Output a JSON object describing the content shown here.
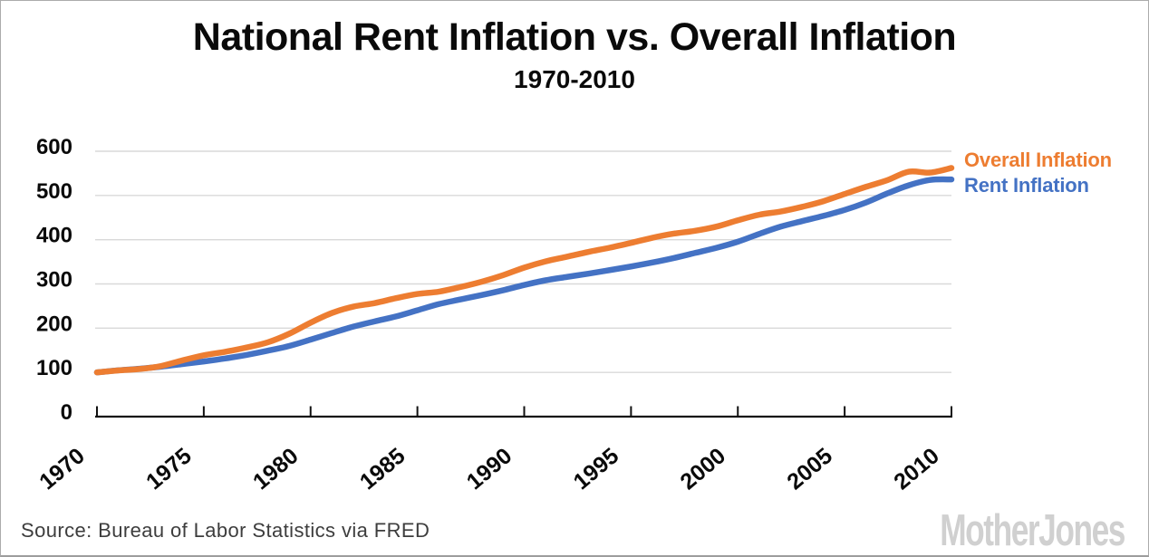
{
  "footer": {
    "source": "Source: Bureau of Labor Statistics via FRED",
    "brand": "MotherJones"
  },
  "chart_data": {
    "type": "line",
    "title": "National Rent Inflation vs. Overall Inflation",
    "subtitle": "1970-2010",
    "xlabel": "",
    "ylabel": "",
    "xlim": [
      1970,
      2010
    ],
    "ylim": [
      0,
      600
    ],
    "x_ticks": [
      1970,
      1975,
      1980,
      1985,
      1990,
      1995,
      2000,
      2005,
      2010
    ],
    "y_ticks": [
      0,
      100,
      200,
      300,
      400,
      500,
      600
    ],
    "grid": "horizontal",
    "grid_color": "#d9d9d9",
    "axis_color": "#111111",
    "legend_position": "right-of-line-ends",
    "x": [
      1970,
      1971,
      1972,
      1973,
      1974,
      1975,
      1976,
      1977,
      1978,
      1979,
      1980,
      1981,
      1982,
      1983,
      1984,
      1985,
      1986,
      1987,
      1988,
      1989,
      1990,
      1991,
      1992,
      1993,
      1994,
      1995,
      1996,
      1997,
      1998,
      1999,
      2000,
      2001,
      2002,
      2003,
      2004,
      2005,
      2006,
      2007,
      2008,
      2009,
      2010
    ],
    "series": [
      {
        "name": "Overall Inflation",
        "color": "#ED7D31",
        "values": [
          100,
          104.4,
          107.7,
          114.4,
          127.1,
          138.7,
          146.6,
          156.2,
          168.0,
          187.4,
          212.4,
          234.3,
          248.7,
          256.7,
          267.8,
          277.3,
          282.5,
          292.8,
          304.9,
          319.6,
          336.9,
          351.0,
          361.6,
          372.4,
          381.9,
          392.8,
          404.4,
          413.7,
          420.1,
          429.6,
          443.8,
          456.4,
          463.7,
          474.2,
          486.9,
          503.4,
          519.6,
          534.6,
          553.8,
          551.8,
          562.2
        ]
      },
      {
        "name": "Rent Inflation",
        "color": "#4472C4",
        "values": [
          100,
          104.7,
          108.4,
          112.9,
          118.7,
          124.7,
          131.4,
          139.4,
          149.0,
          159.8,
          174.0,
          189.0,
          203.4,
          215.3,
          226.5,
          240.4,
          254.4,
          264.7,
          274.8,
          285.6,
          297.6,
          308.2,
          315.9,
          323.2,
          331.2,
          339.4,
          348.4,
          358.5,
          370.1,
          381.7,
          395.5,
          413.1,
          429.5,
          441.9,
          453.8,
          467.3,
          484.1,
          504.7,
          523.0,
          535.1,
          536.3
        ]
      }
    ]
  }
}
